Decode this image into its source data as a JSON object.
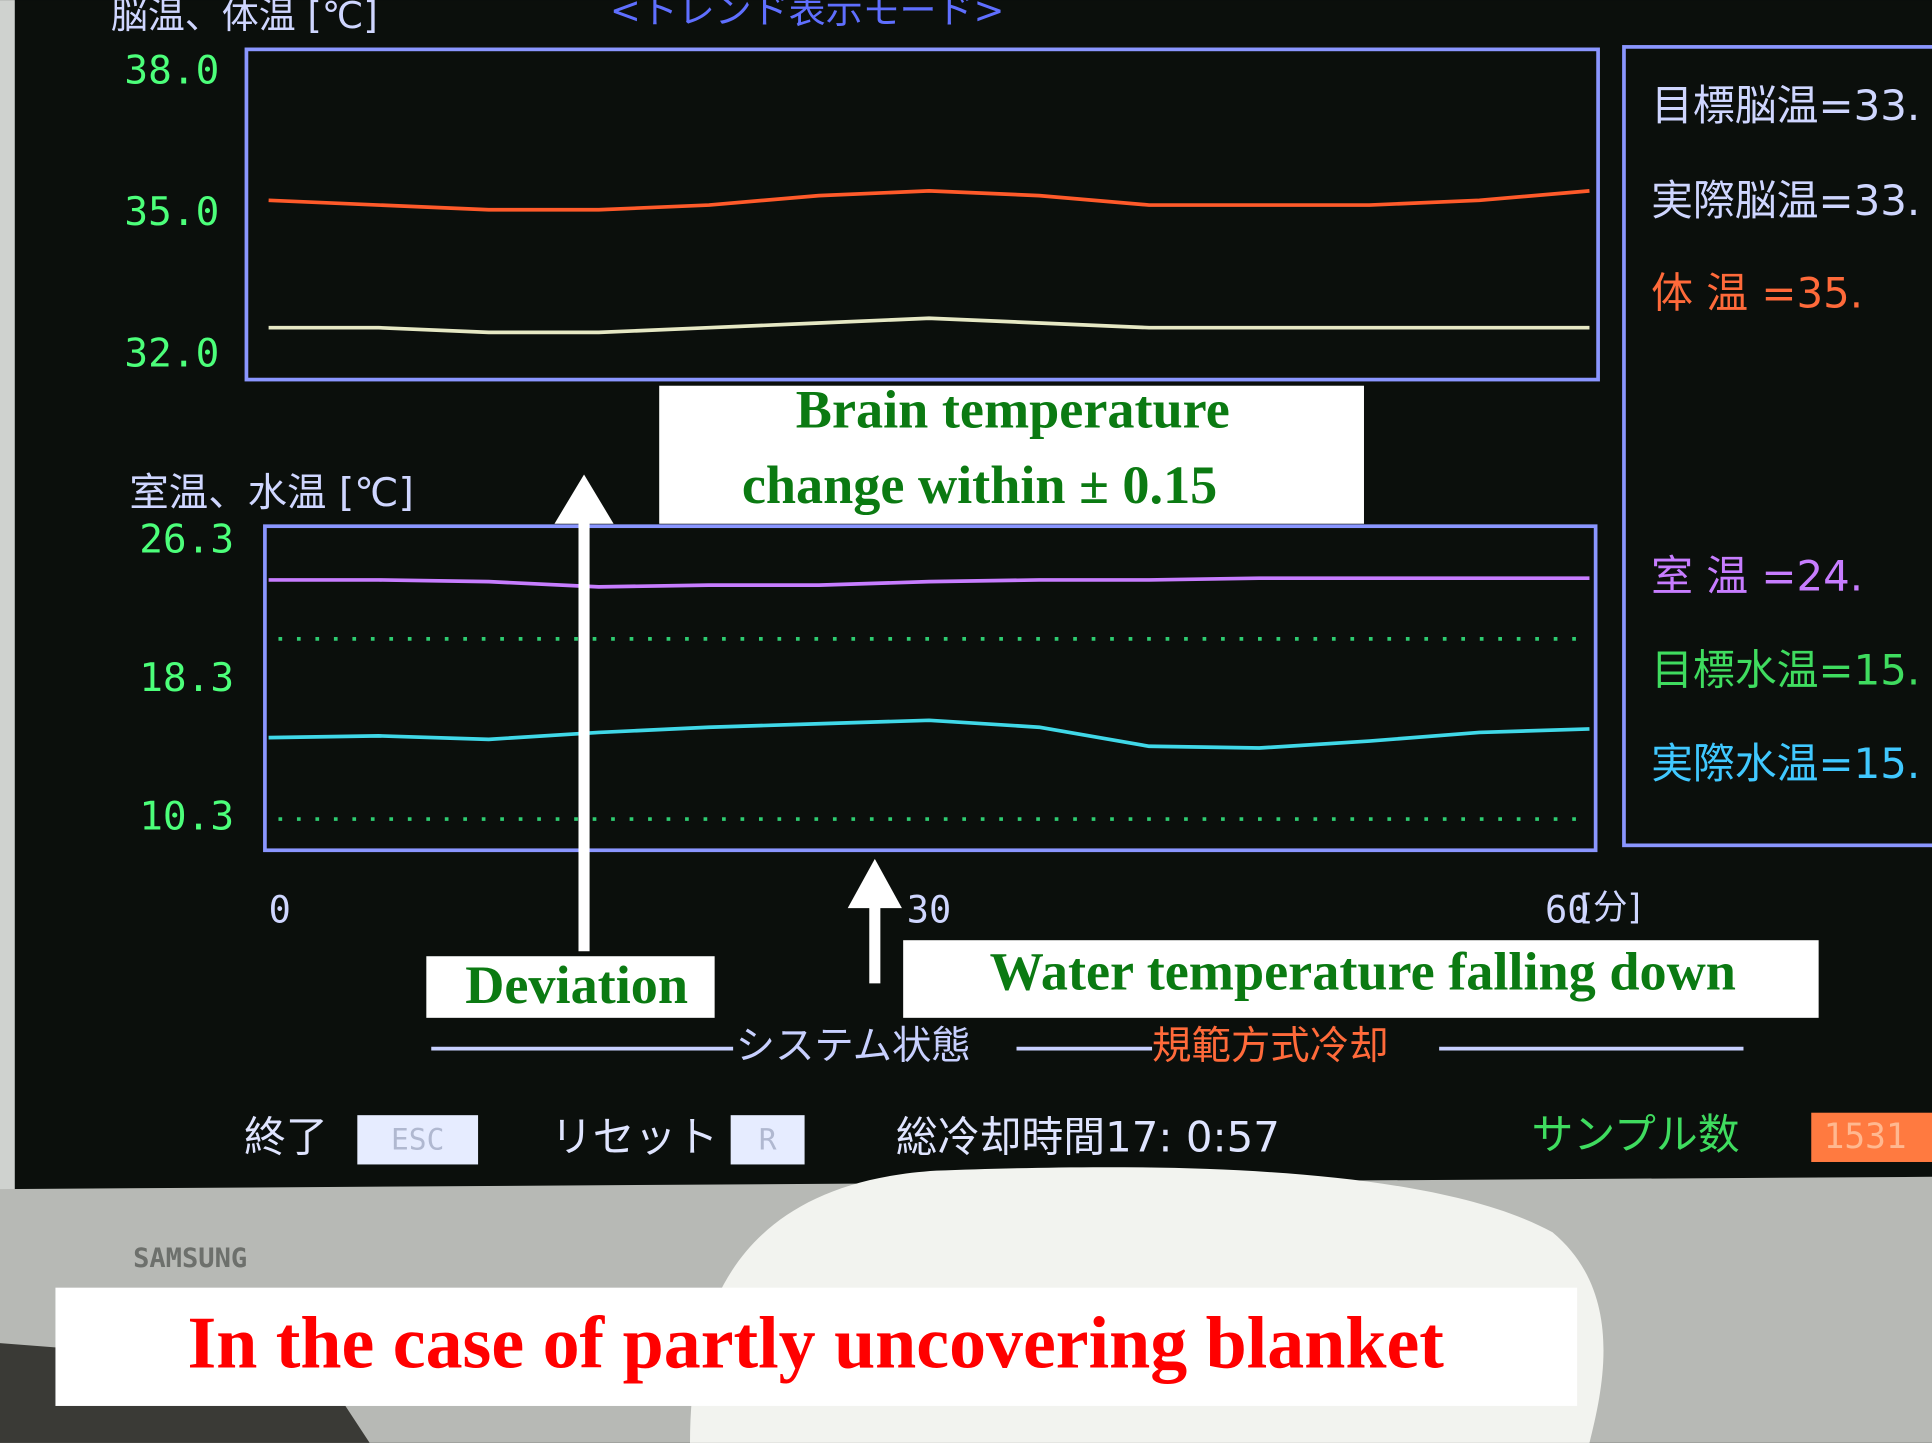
{
  "screen": {
    "header": {
      "title": "脳温、体温 [℃]",
      "mode": "<トレンド表示モード>"
    },
    "xaxis": {
      "xlim": [
        0,
        60
      ],
      "xticks": [
        0,
        30,
        60
      ],
      "unit": "[分]",
      "x": [
        0,
        5,
        10,
        15,
        20,
        25,
        30,
        35,
        40,
        45,
        50,
        55,
        60
      ]
    },
    "top_panel": {
      "ylim": [
        31.5,
        38.5
      ],
      "yticks": [
        {
          "value": 38,
          "label": "38.0"
        },
        {
          "value": 35,
          "label": "35.0"
        },
        {
          "value": 32,
          "label": "32.0"
        }
      ],
      "series": [
        {
          "color": "#ff5a2a",
          "values": [
            35.3,
            35.2,
            35.1,
            35.1,
            35.2,
            35.4,
            35.5,
            35.4,
            35.2,
            35.2,
            35.2,
            35.3,
            35.5
          ]
        },
        {
          "color": "#e6e8c4",
          "values": [
            32.6,
            32.6,
            32.5,
            32.5,
            32.6,
            32.7,
            32.8,
            32.7,
            32.6,
            32.6,
            32.6,
            32.6,
            32.6
          ]
        }
      ]
    },
    "lower_panel": {
      "title": "室温、水温 [℃]",
      "ylim": [
        8.5,
        27.2
      ],
      "yticks": [
        26.3,
        18.3,
        10.3
      ],
      "reference_lines": [
        20.7,
        10.3
      ],
      "reference_color": "#2ecc71",
      "series": [
        {
          "color": "#c77dff",
          "values": [
            24.1,
            24.1,
            24.0,
            23.7,
            23.8,
            23.8,
            24.0,
            24.1,
            24.1,
            24.2,
            24.2,
            24.2,
            24.2
          ]
        },
        {
          "color": "#40d8e8",
          "values": [
            15.0,
            15.1,
            14.9,
            15.3,
            15.6,
            15.8,
            16.0,
            15.6,
            14.5,
            14.4,
            14.8,
            15.3,
            15.5
          ]
        }
      ]
    },
    "readouts": [
      "目標脳温=33.",
      "実際脳温=33.",
      "体 温 =35.",
      "室 温 =24.",
      "目標水温=15.",
      "実際水温=15."
    ],
    "status": {
      "label": "システム状態",
      "mode": "規範方式冷却"
    },
    "footer": {
      "exit": "終了",
      "exit_key": "ESC",
      "reset": "リセット",
      "reset_key": "R",
      "cooling_time": "総冷却時間17: 0:57",
      "samples_label": "サンプル数",
      "samples": "1531"
    },
    "brand": "SAMSUNG"
  },
  "annotations": {
    "brain": [
      "Brain temperature",
      "change within ± 0.15"
    ],
    "deviation": "Deviation",
    "water": "Water temperature falling down",
    "caption": "In the case of partly uncovering blanket"
  }
}
